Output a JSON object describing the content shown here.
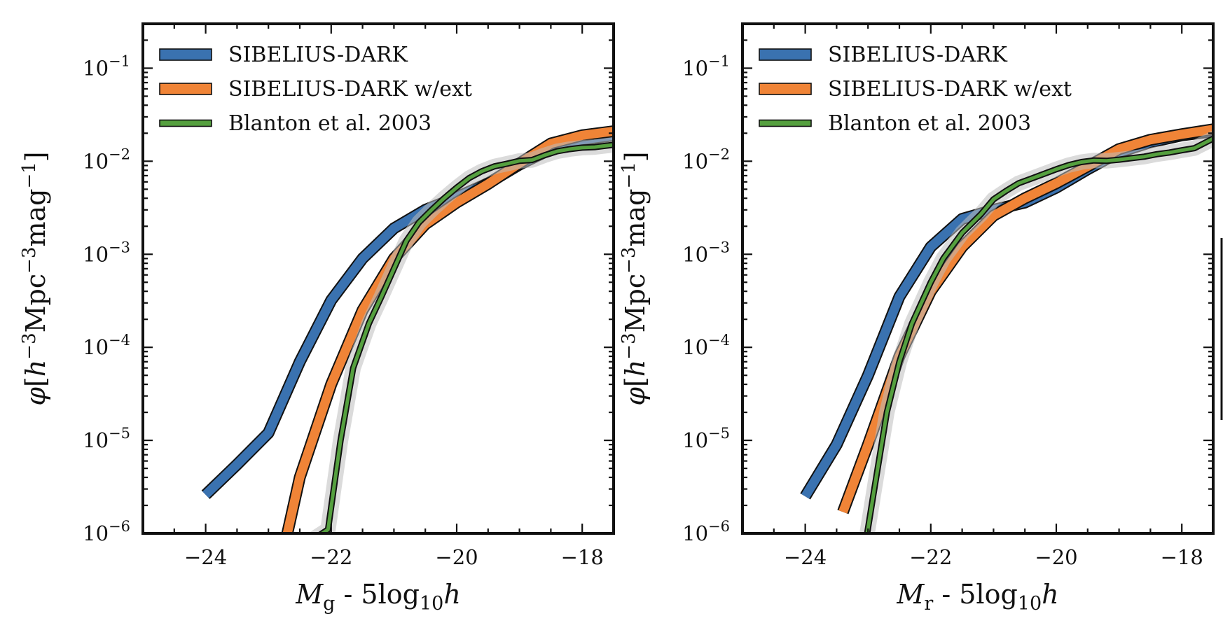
{
  "colors": {
    "blue": "#3a72b0",
    "orange": "#f08437",
    "green": "#55a03f",
    "band": "#bdbdbd",
    "outline": "#111111"
  },
  "chart_data": [
    {
      "type": "line",
      "xlabel": "Mg - 5log10h",
      "ylabel": "φ[h−3Mpc−3mag−1]",
      "xlim": [
        -25.0,
        -17.5
      ],
      "ylim": [
        1e-06,
        0.3
      ],
      "y_scale": "log",
      "x_ticks": [
        -24,
        -22,
        -20,
        -18
      ],
      "y_ticks": [
        1e-06,
        1e-05,
        0.0001,
        0.001,
        0.01,
        0.1
      ],
      "legend_position": "top-left",
      "series": [
        {
          "name": "SIBELIUS-DARK",
          "color": "#3a72b0",
          "x": [
            -24.0,
            -23.5,
            -23.0,
            -22.5,
            -22.0,
            -21.5,
            -21.0,
            -20.5,
            -20.0,
            -19.5,
            -19.0,
            -18.5,
            -18.0,
            -17.5
          ],
          "y": [
            2.6e-06,
            5.5e-06,
            1.2e-05,
            7e-05,
            0.00032,
            0.0009,
            0.0019,
            0.003,
            0.0041,
            0.0058,
            0.0092,
            0.0135,
            0.017,
            0.019
          ]
        },
        {
          "name": "SIBELIUS-DARK w/ext",
          "color": "#f08437",
          "x": [
            -22.75,
            -22.5,
            -22.0,
            -21.5,
            -21.0,
            -20.5,
            -20.0,
            -19.5,
            -19.0,
            -18.5,
            -18.0,
            -17.5
          ],
          "y": [
            7e-07,
            4e-06,
            4e-05,
            0.00025,
            0.0009,
            0.0021,
            0.0036,
            0.0057,
            0.0095,
            0.0155,
            0.019,
            0.021
          ]
        },
        {
          "name": "Blanton et al. 2003",
          "color": "#55a03f",
          "x": [
            -22.25,
            -22.05,
            -21.85,
            -21.65,
            -21.4,
            -21.2,
            -21.0,
            -20.8,
            -20.6,
            -20.4,
            -20.2,
            -20.0,
            -19.8,
            -19.6,
            -19.4,
            -19.2,
            -19.0,
            -18.8,
            -18.6,
            -18.4,
            -18.2,
            -18.0,
            -17.8,
            -17.5
          ],
          "y": [
            9e-07,
            1.1e-06,
            1e-05,
            6e-05,
            0.00018,
            0.00035,
            0.0007,
            0.0014,
            0.0022,
            0.003,
            0.004,
            0.0052,
            0.0066,
            0.0078,
            0.0088,
            0.0094,
            0.0101,
            0.0103,
            0.0116,
            0.0128,
            0.0135,
            0.014,
            0.0142,
            0.015
          ]
        }
      ]
    },
    {
      "type": "line",
      "xlabel": "Mr - 5log10h",
      "ylabel": "φ[h−3Mpc−3mag−1]",
      "xlim": [
        -25.0,
        -17.5
      ],
      "ylim": [
        1e-06,
        0.3
      ],
      "y_scale": "log",
      "x_ticks": [
        -24,
        -22,
        -20,
        -18
      ],
      "y_ticks": [
        1e-06,
        1e-05,
        0.0001,
        0.001,
        0.01,
        0.1
      ],
      "legend_position": "top-left",
      "series": [
        {
          "name": "SIBELIUS-DARK",
          "color": "#3a72b0",
          "x": [
            -24.0,
            -23.5,
            -23.0,
            -22.5,
            -22.0,
            -21.5,
            -21.0,
            -20.5,
            -20.0,
            -19.5,
            -19.0,
            -18.5,
            -18.0,
            -17.5
          ],
          "y": [
            2.5e-06,
            9e-06,
            5e-05,
            0.00035,
            0.0012,
            0.0024,
            0.003,
            0.0036,
            0.0052,
            0.0082,
            0.0125,
            0.016,
            0.019,
            0.021
          ]
        },
        {
          "name": "SIBELIUS-DARK w/ext",
          "color": "#f08437",
          "x": [
            -23.4,
            -23.0,
            -22.5,
            -22.0,
            -21.5,
            -21.0,
            -20.5,
            -20.0,
            -19.5,
            -19.0,
            -18.5,
            -18.0,
            -17.5
          ],
          "y": [
            1.7e-06,
            9e-06,
            8e-05,
            0.0004,
            0.0012,
            0.0026,
            0.004,
            0.0058,
            0.0088,
            0.0135,
            0.017,
            0.0195,
            0.022
          ]
        },
        {
          "name": "Blanton et al. 2003",
          "color": "#55a03f",
          "x": [
            -23.05,
            -22.9,
            -22.7,
            -22.5,
            -22.3,
            -22.0,
            -21.8,
            -21.5,
            -21.2,
            -21.0,
            -20.8,
            -20.6,
            -20.4,
            -20.2,
            -20.0,
            -19.8,
            -19.6,
            -19.4,
            -19.2,
            -19.0,
            -18.8,
            -18.6,
            -18.4,
            -18.2,
            -18.0,
            -17.8,
            -17.5
          ],
          "y": [
            7e-07,
            3e-06,
            2e-05,
            7e-05,
            0.00018,
            0.0005,
            0.0009,
            0.0017,
            0.0027,
            0.0039,
            0.0048,
            0.0058,
            0.0065,
            0.0073,
            0.0082,
            0.0091,
            0.0098,
            0.0102,
            0.0101,
            0.0104,
            0.0108,
            0.0112,
            0.0119,
            0.0124,
            0.0131,
            0.0138,
            0.0175
          ]
        }
      ]
    }
  ]
}
